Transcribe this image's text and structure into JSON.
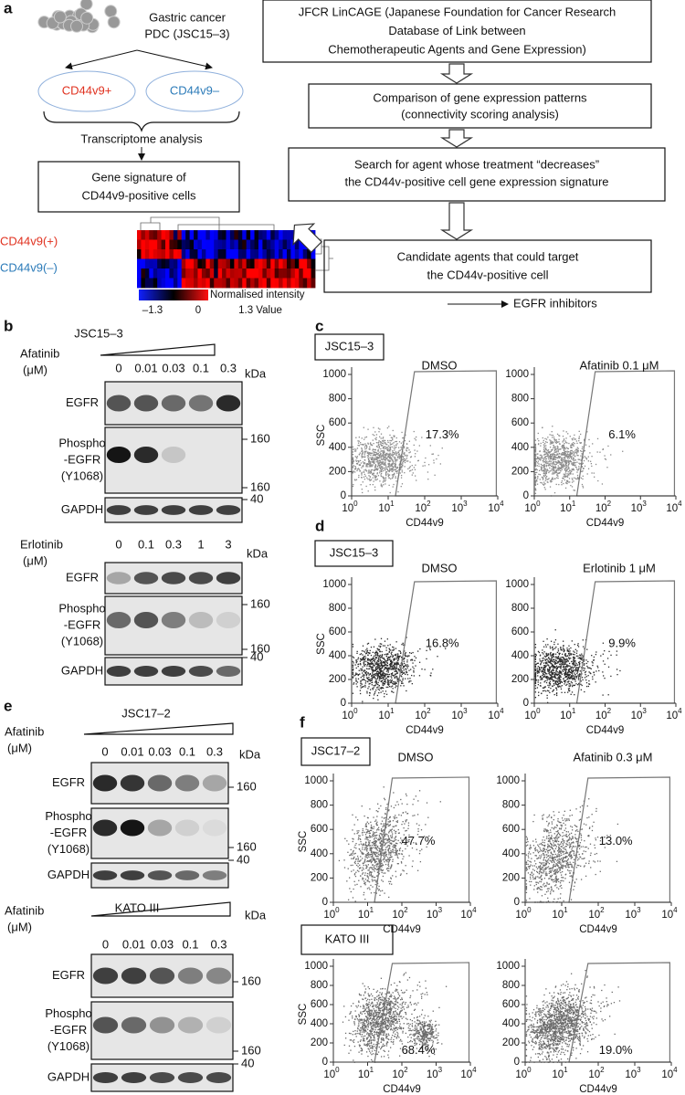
{
  "panel_a": {
    "letter": "a",
    "cells_label": [
      "Gastric cancer",
      "PDC (JSC15–3)"
    ],
    "positive": "CD44v9+",
    "negative": "CD44v9–",
    "transcriptome": "Transcriptome analysis",
    "signature": [
      "Gene signature of",
      "CD44v9-positive cells"
    ],
    "heatmap": {
      "row_labels": [
        "CD44v9(+)",
        "CD44v9(–)"
      ],
      "colorbar_title": "Normalised intensity",
      "colorbar_ticks": [
        "–1.3",
        "0",
        "1.3 Value"
      ]
    },
    "flow_boxes": [
      [
        "JFCR LinCAGE (Japanese Foundation for Cancer Research",
        "Database of Link between",
        "Chemotherapeutic Agents and Gene Expression)"
      ],
      [
        "Comparison of gene expression patterns",
        "(connectivity scoring analysis)"
      ],
      [
        "Search for agent whose treatment “decreases”",
        "the CD44v-positive cell gene expression signature"
      ],
      [
        "Candidate agents that could target",
        "the CD44v-positive cell"
      ]
    ],
    "result": "EGFR inhibitors"
  },
  "blots": [
    {
      "letter": "b",
      "cell": "JSC15–3",
      "drug": "Afatinib",
      "unit": "(μM)",
      "doses": [
        "0",
        "0.01",
        "0.03",
        "0.1",
        "0.3"
      ],
      "kda": "kDa",
      "rows": [
        {
          "label": [
            "EGFR"
          ],
          "marker": "160"
        },
        {
          "label": [
            "Phospho",
            "-EGFR",
            "(Y1068)"
          ],
          "marker": "160"
        },
        {
          "label": [
            "GAPDH"
          ],
          "marker": "40"
        }
      ]
    },
    {
      "drug": "Erlotinib",
      "unit": "(μM)",
      "doses": [
        "0",
        "0.1",
        "0.3",
        "1",
        "3"
      ],
      "kda": "kDa",
      "rows": [
        {
          "label": [
            "EGFR"
          ],
          "marker": "160"
        },
        {
          "label": [
            "Phospho",
            "-EGFR",
            "(Y1068)"
          ],
          "marker": "160"
        },
        {
          "label": [
            "GAPDH"
          ],
          "marker": "40"
        }
      ]
    },
    {
      "letter": "e",
      "cell": "JSC17–2",
      "drug": "Afatinib",
      "unit": "(μM)",
      "doses": [
        "0",
        "0.01",
        "0.03",
        "0.1",
        "0.3"
      ],
      "kda": "kDa",
      "rows": [
        {
          "label": [
            "EGFR"
          ],
          "marker": "160"
        },
        {
          "label": [
            "Phospho",
            "-EGFR",
            "(Y1068)"
          ],
          "marker": "160"
        },
        {
          "label": [
            "GAPDH"
          ],
          "marker": "40"
        }
      ]
    },
    {
      "cell": "KATO III",
      "drug": "Afatinib",
      "unit": "(μM)",
      "doses": [
        "0",
        "0.01",
        "0.03",
        "0.1",
        "0.3"
      ],
      "kda": "kDa",
      "rows": [
        {
          "label": [
            "EGFR"
          ],
          "marker": "160"
        },
        {
          "label": [
            "Phospho",
            "-EGFR",
            "(Y1068)"
          ],
          "marker": "160"
        },
        {
          "label": [
            "GAPDH"
          ],
          "marker": "40"
        }
      ]
    }
  ],
  "flow_axes": {
    "y_label": "SSC",
    "x_label": "CD44v9",
    "yticks": [
      0,
      200,
      400,
      600,
      800,
      1000
    ],
    "xtick_base": "10",
    "xtick_exps": [
      "0",
      "1",
      "2",
      "3",
      "4"
    ]
  },
  "flow_panels": [
    {
      "letter": "c",
      "label": "JSC15–3",
      "plots": [
        {
          "treatment": "DMSO",
          "percent": "17.3%"
        },
        {
          "treatment": "Afatinib 0.1 μM",
          "percent": "6.1%"
        }
      ]
    },
    {
      "letter": "d",
      "label": "JSC15–3",
      "plots": [
        {
          "treatment": "DMSO",
          "percent": "16.8%"
        },
        {
          "treatment": "Erlotinib 1 μM",
          "percent": "9.9%"
        }
      ]
    },
    {
      "letter": "f",
      "label": "JSC17–2",
      "plots": [
        {
          "treatment": "DMSO",
          "percent": "47.7%"
        },
        {
          "treatment": "Afatinib 0.3 μM",
          "percent": "13.0%"
        }
      ]
    },
    {
      "label": "KATO III",
      "plots": [
        {
          "percent": "68.4%"
        },
        {
          "percent": "19.0%"
        }
      ]
    }
  ]
}
